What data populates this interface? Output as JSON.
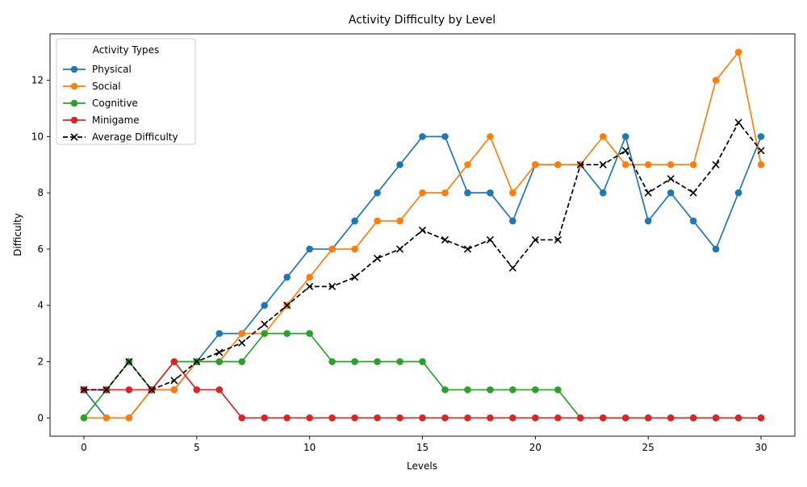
{
  "chart_data": {
    "type": "line",
    "title": "Activity Difficulty by Level",
    "xlabel": "Levels",
    "ylabel": "Difficulty",
    "xlim": [
      -1.5,
      31.5
    ],
    "ylim": [
      -0.65,
      13.65
    ],
    "xticks": [
      0,
      5,
      10,
      15,
      20,
      25,
      30
    ],
    "yticks": [
      0,
      2,
      4,
      6,
      8,
      10,
      12
    ],
    "grid": false,
    "legend": {
      "title": "Activity Types",
      "placement": "top-left"
    },
    "x": [
      0,
      1,
      2,
      3,
      4,
      5,
      6,
      7,
      8,
      9,
      10,
      11,
      12,
      13,
      14,
      15,
      16,
      17,
      18,
      19,
      20,
      21,
      22,
      23,
      24,
      25,
      26,
      27,
      28,
      29,
      30
    ],
    "series": [
      {
        "name": "Physical",
        "color": "#1f77b4",
        "marker": "circle",
        "dash": "solid",
        "values": [
          1,
          0,
          0,
          1,
          1,
          2,
          3,
          3,
          4,
          5,
          6,
          6,
          7,
          8,
          9,
          10,
          10,
          8,
          8,
          7,
          9,
          9,
          9,
          8,
          10,
          7,
          8,
          7,
          6,
          8,
          10
        ]
      },
      {
        "name": "Social",
        "color": "#ff7f0e",
        "marker": "circle",
        "dash": "solid",
        "values": [
          0,
          0,
          0,
          1,
          1,
          2,
          2,
          3,
          3,
          4,
          5,
          6,
          6,
          7,
          7,
          8,
          8,
          9,
          10,
          8,
          9,
          9,
          9,
          10,
          9,
          9,
          9,
          9,
          12,
          13,
          9
        ]
      },
      {
        "name": "Cognitive",
        "color": "#2ca02c",
        "marker": "circle",
        "dash": "solid",
        "values": [
          0,
          1,
          2,
          1,
          2,
          2,
          2,
          2,
          3,
          3,
          3,
          2,
          2,
          2,
          2,
          2,
          1,
          1,
          1,
          1,
          1,
          1,
          0,
          0,
          0,
          0,
          0,
          0,
          0,
          0,
          0
        ]
      },
      {
        "name": "Minigame",
        "color": "#d62728",
        "marker": "circle",
        "dash": "solid",
        "values": [
          1,
          1,
          1,
          1,
          2,
          1,
          1,
          0,
          0,
          0,
          0,
          0,
          0,
          0,
          0,
          0,
          0,
          0,
          0,
          0,
          0,
          0,
          0,
          0,
          0,
          0,
          0,
          0,
          0,
          0,
          0
        ]
      },
      {
        "name": "Average Difficulty",
        "color": "#000000",
        "marker": "x",
        "dash": "dashed",
        "values": [
          1,
          1,
          2,
          1,
          1.33,
          2,
          2.33,
          2.67,
          3.33,
          4,
          4.67,
          4.67,
          5,
          5.67,
          6,
          6.67,
          6.33,
          6,
          6.33,
          5.33,
          6.33,
          6.33,
          9,
          9,
          9.5,
          8,
          8.5,
          8,
          9,
          10.5,
          9.5
        ]
      }
    ]
  }
}
